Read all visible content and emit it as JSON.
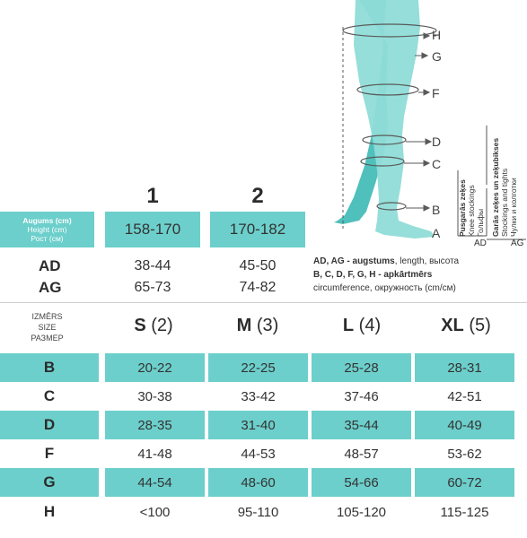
{
  "leg_letters": [
    "H",
    "G",
    "F",
    "D",
    "C",
    "B",
    "A"
  ],
  "product_types": {
    "knee": {
      "lv": "Pusgarās zeķes",
      "en": "Knee stockings",
      "ru": "Гольфы",
      "code": "AD"
    },
    "stockings": {
      "lv": "Garās zeķes un zeķubikses",
      "en": "Stockings and tights",
      "ru": "Чулки и колготки",
      "code": "AG"
    }
  },
  "height_table": {
    "columns": [
      "1",
      "2"
    ],
    "label": {
      "lv": "Augums (cm)",
      "en": "Height (cm)",
      "ru": "Рост (см)"
    },
    "values": [
      "158-170",
      "170-182"
    ],
    "rows": [
      {
        "label": "AD",
        "values": [
          "38-44",
          "45-50"
        ]
      },
      {
        "label": "AG",
        "values": [
          "65-73",
          "74-82"
        ]
      }
    ]
  },
  "notes": {
    "line1_bold": "AD, AG - augstums",
    "line1_rest": ", length, высота",
    "line2": "B, C, D, F, G, H - apkārtmērs",
    "line3": "circumference, окружность (cm/см)"
  },
  "size_table": {
    "header_label": {
      "lv": "IZMĒRS",
      "en": "SIZE",
      "ru": "РАЗМЕР"
    },
    "sizes": [
      {
        "name": "S",
        "num": "(2)"
      },
      {
        "name": "M",
        "num": "(3)"
      },
      {
        "name": "L",
        "num": "(4)"
      },
      {
        "name": "XL",
        "num": "(5)"
      }
    ],
    "rows": [
      {
        "label": "B",
        "values": [
          "20-22",
          "22-25",
          "25-28",
          "28-31"
        ]
      },
      {
        "label": "C",
        "values": [
          "30-38",
          "33-42",
          "37-46",
          "42-51"
        ]
      },
      {
        "label": "D",
        "values": [
          "28-35",
          "31-40",
          "35-44",
          "40-49"
        ]
      },
      {
        "label": "F",
        "values": [
          "41-48",
          "44-53",
          "48-57",
          "53-62"
        ]
      },
      {
        "label": "G",
        "values": [
          "44-54",
          "48-60",
          "54-66",
          "60-72"
        ]
      },
      {
        "label": "H",
        "values": [
          "<100",
          "95-110",
          "105-120",
          "115-125"
        ]
      }
    ]
  },
  "colors": {
    "teal": "#6ccfcb",
    "leg_dark": "#4fc0bb",
    "leg_light": "#8fdcd7"
  }
}
